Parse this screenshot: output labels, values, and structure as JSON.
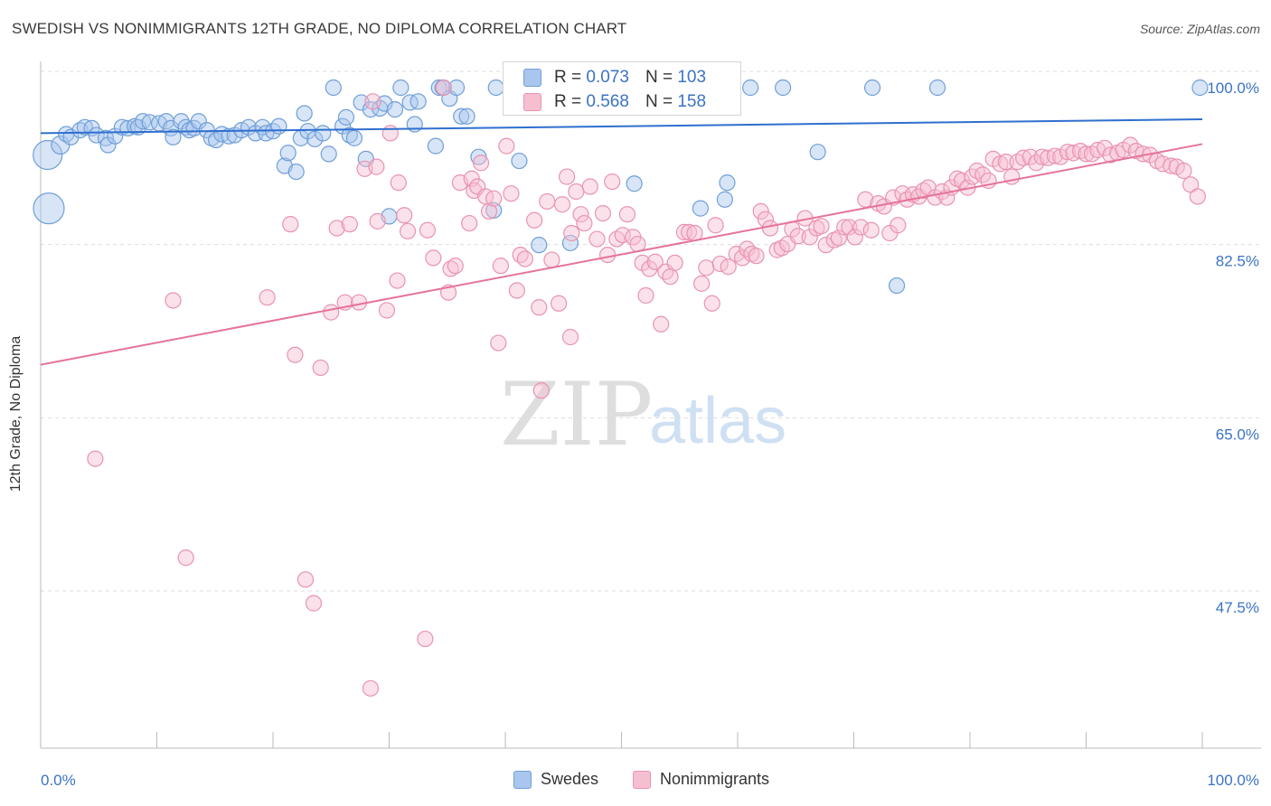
{
  "title": "SWEDISH VS NONIMMIGRANTS 12TH GRADE, NO DIPLOMA CORRELATION CHART",
  "source": "Source: ZipAtlas.com",
  "watermark": {
    "zip": "ZIP",
    "atlas": "atlas"
  },
  "stats_box": {
    "row1": {
      "r_label": "R =",
      "r_value": "0.073",
      "n_label": "N =",
      "n_value": "103"
    },
    "row2": {
      "r_label": "R =",
      "r_value": "0.568",
      "n_label": "N =",
      "n_value": "158"
    }
  },
  "legend": {
    "swedes": "Swedes",
    "nonimmigrants": "Nonimmigrants"
  },
  "colors": {
    "blue_fill": "#a9c6ee",
    "blue_stroke": "#6f9fd8",
    "blue_line": "#2f6fcf",
    "pink_fill": "#f6bfd0",
    "pink_stroke": "#e993b0",
    "pink_line": "#e5739a",
    "tick_label": "#3b73c4",
    "grid": "#dddddd"
  },
  "chart_data": {
    "type": "scatter",
    "title": "SWEDISH VS NONIMMIGRANTS 12TH GRADE, NO DIPLOMA CORRELATION CHART",
    "xlabel": "",
    "ylabel": "12th Grade, No Diploma",
    "xlim": [
      0,
      100
    ],
    "ylim": [
      32,
      101.5
    ],
    "x_tick_labels": [
      "0.0%",
      "100.0%"
    ],
    "y_ticks": [
      100.0,
      82.5,
      65.0,
      47.5
    ],
    "y_tick_labels": [
      "100.0%",
      "82.5%",
      "65.0%",
      "47.5%"
    ],
    "grid": true,
    "legend_position": "bottom",
    "series": [
      {
        "name": "Swedes",
        "color": "#6f9fd8",
        "trend": {
          "r": 0.073,
          "n": 103,
          "y_at_0": 95.4,
          "y_at_100": 96.8
        },
        "points": [
          [
            0.6,
            93.2
          ],
          [
            0.7,
            87.8
          ],
          [
            1.7,
            94.2
          ],
          [
            2.2,
            95.3
          ],
          [
            2.6,
            95.0
          ],
          [
            3.4,
            95.7
          ],
          [
            3.8,
            96.0
          ],
          [
            4.4,
            95.9
          ],
          [
            4.8,
            95.2
          ],
          [
            5.6,
            94.9
          ],
          [
            5.8,
            94.2
          ],
          [
            6.4,
            95.1
          ],
          [
            7.0,
            96.0
          ],
          [
            7.5,
            95.9
          ],
          [
            8.1,
            96.1
          ],
          [
            8.4,
            96.0
          ],
          [
            8.8,
            96.6
          ],
          [
            9.4,
            96.5
          ],
          [
            10.2,
            96.4
          ],
          [
            10.8,
            96.6
          ],
          [
            11.2,
            95.9
          ],
          [
            11.4,
            95.0
          ],
          [
            12.1,
            96.6
          ],
          [
            12.5,
            96.0
          ],
          [
            12.8,
            95.7
          ],
          [
            13.2,
            95.9
          ],
          [
            13.6,
            96.6
          ],
          [
            14.3,
            95.7
          ],
          [
            14.7,
            94.9
          ],
          [
            15.1,
            94.7
          ],
          [
            15.6,
            95.3
          ],
          [
            16.2,
            95.1
          ],
          [
            16.7,
            95.2
          ],
          [
            17.3,
            95.7
          ],
          [
            17.9,
            96.0
          ],
          [
            18.5,
            95.4
          ],
          [
            19.1,
            96.0
          ],
          [
            19.4,
            95.4
          ],
          [
            20.0,
            95.6
          ],
          [
            20.5,
            96.1
          ],
          [
            21.0,
            92.1
          ],
          [
            21.3,
            93.4
          ],
          [
            22.0,
            91.5
          ],
          [
            22.4,
            94.9
          ],
          [
            22.7,
            97.4
          ],
          [
            23.0,
            95.6
          ],
          [
            23.6,
            94.8
          ],
          [
            24.3,
            95.4
          ],
          [
            24.8,
            93.3
          ],
          [
            25.2,
            100.0
          ],
          [
            26.0,
            96.1
          ],
          [
            26.3,
            97.0
          ],
          [
            26.6,
            95.2
          ],
          [
            27.0,
            94.9
          ],
          [
            27.6,
            98.5
          ],
          [
            28.0,
            92.8
          ],
          [
            28.4,
            97.8
          ],
          [
            29.2,
            97.9
          ],
          [
            29.6,
            98.4
          ],
          [
            30.0,
            87.0
          ],
          [
            30.5,
            97.8
          ],
          [
            31.0,
            100.0
          ],
          [
            31.8,
            98.5
          ],
          [
            32.2,
            96.3
          ],
          [
            32.5,
            98.6
          ],
          [
            34.0,
            94.1
          ],
          [
            34.3,
            100.0
          ],
          [
            34.6,
            100.0
          ],
          [
            35.2,
            98.9
          ],
          [
            35.8,
            100.0
          ],
          [
            36.2,
            97.1
          ],
          [
            36.7,
            97.1
          ],
          [
            37.7,
            93.0
          ],
          [
            39.0,
            87.6
          ],
          [
            39.2,
            100.0
          ],
          [
            41.0,
            100.0
          ],
          [
            41.2,
            92.6
          ],
          [
            42.9,
            84.1
          ],
          [
            45.0,
            100.0
          ],
          [
            45.6,
            84.3
          ],
          [
            48.4,
            100.0
          ],
          [
            51.1,
            90.3
          ],
          [
            52.7,
            100.0
          ],
          [
            56.8,
            87.8
          ],
          [
            56.9,
            100.0
          ],
          [
            58.9,
            88.7
          ],
          [
            59.1,
            90.4
          ],
          [
            61.1,
            100.0
          ],
          [
            63.9,
            100.0
          ],
          [
            66.9,
            93.5
          ],
          [
            71.6,
            100.0
          ],
          [
            73.7,
            80.0
          ],
          [
            77.2,
            100.0
          ],
          [
            99.8,
            100.0
          ]
        ],
        "large_points": [
          [
            0.6,
            93.2,
            16
          ],
          [
            0.7,
            87.8,
            17
          ],
          [
            1.7,
            94.2,
            10
          ]
        ]
      },
      {
        "name": "Nonimmigrants",
        "color": "#e993b0",
        "trend": {
          "r": 0.568,
          "n": 158,
          "y_at_0": 72.0,
          "y_at_100": 94.3
        },
        "points": [
          [
            4.7,
            62.5
          ],
          [
            11.4,
            78.5
          ],
          [
            12.5,
            52.5
          ],
          [
            19.5,
            78.8
          ],
          [
            21.5,
            86.2
          ],
          [
            21.9,
            73.0
          ],
          [
            22.8,
            50.3
          ],
          [
            23.5,
            47.9
          ],
          [
            24.1,
            71.7
          ],
          [
            25.0,
            77.3
          ],
          [
            25.5,
            85.8
          ],
          [
            26.2,
            78.3
          ],
          [
            26.6,
            86.2
          ],
          [
            27.4,
            78.3
          ],
          [
            27.9,
            91.8
          ],
          [
            28.4,
            39.3
          ],
          [
            28.6,
            98.6
          ],
          [
            28.9,
            92.0
          ],
          [
            29.0,
            86.5
          ],
          [
            29.8,
            77.5
          ],
          [
            30.1,
            95.4
          ],
          [
            30.7,
            80.5
          ],
          [
            30.8,
            90.4
          ],
          [
            31.3,
            87.1
          ],
          [
            31.6,
            85.5
          ],
          [
            33.1,
            44.3
          ],
          [
            33.3,
            85.6
          ],
          [
            33.8,
            82.8
          ],
          [
            34.7,
            100.0
          ],
          [
            35.1,
            79.3
          ],
          [
            35.3,
            81.7
          ],
          [
            35.7,
            82.0
          ],
          [
            36.1,
            90.4
          ],
          [
            36.9,
            86.3
          ],
          [
            37.1,
            90.8
          ],
          [
            37.3,
            89.6
          ],
          [
            37.6,
            90.0
          ],
          [
            37.9,
            92.4
          ],
          [
            38.3,
            89.0
          ],
          [
            38.6,
            87.5
          ],
          [
            39.0,
            88.8
          ],
          [
            39.4,
            74.2
          ],
          [
            39.6,
            82.0
          ],
          [
            40.1,
            94.1
          ],
          [
            40.5,
            89.3
          ],
          [
            41.0,
            79.5
          ],
          [
            41.3,
            83.1
          ],
          [
            41.7,
            82.7
          ],
          [
            42.5,
            86.6
          ],
          [
            42.9,
            77.8
          ],
          [
            43.1,
            69.4
          ],
          [
            43.6,
            88.5
          ],
          [
            44.0,
            82.6
          ],
          [
            44.6,
            78.2
          ],
          [
            44.9,
            88.2
          ],
          [
            45.3,
            91.0
          ],
          [
            45.6,
            74.8
          ],
          [
            45.7,
            85.3
          ],
          [
            46.1,
            89.5
          ],
          [
            46.5,
            87.2
          ],
          [
            46.8,
            86.3
          ],
          [
            47.3,
            90.0
          ],
          [
            47.9,
            84.7
          ],
          [
            48.4,
            87.3
          ],
          [
            48.8,
            83.1
          ],
          [
            49.2,
            90.5
          ],
          [
            49.6,
            84.7
          ],
          [
            50.1,
            85.1
          ],
          [
            50.5,
            87.2
          ],
          [
            51.0,
            84.9
          ],
          [
            51.4,
            84.2
          ],
          [
            51.8,
            82.3
          ],
          [
            52.1,
            79.0
          ],
          [
            52.4,
            81.7
          ],
          [
            52.9,
            82.4
          ],
          [
            53.4,
            76.1
          ],
          [
            53.8,
            81.4
          ],
          [
            54.2,
            80.9
          ],
          [
            54.6,
            82.3
          ],
          [
            55.4,
            85.4
          ],
          [
            55.8,
            85.4
          ],
          [
            56.3,
            85.3
          ],
          [
            56.9,
            80.2
          ],
          [
            57.3,
            81.8
          ],
          [
            57.8,
            78.2
          ],
          [
            58.1,
            86.1
          ],
          [
            58.5,
            82.2
          ],
          [
            59.2,
            81.9
          ],
          [
            59.9,
            83.2
          ],
          [
            60.4,
            82.8
          ],
          [
            60.8,
            83.7
          ],
          [
            61.2,
            83.2
          ],
          [
            61.6,
            83.0
          ],
          [
            62.0,
            87.5
          ],
          [
            62.4,
            86.7
          ],
          [
            62.8,
            85.8
          ],
          [
            63.4,
            83.6
          ],
          [
            63.8,
            83.8
          ],
          [
            64.3,
            84.2
          ],
          [
            64.7,
            85.7
          ],
          [
            65.2,
            85.0
          ],
          [
            65.8,
            86.8
          ],
          [
            66.2,
            84.9
          ],
          [
            66.8,
            85.8
          ],
          [
            67.2,
            86.0
          ],
          [
            67.6,
            84.1
          ],
          [
            68.3,
            84.6
          ],
          [
            68.7,
            84.8
          ],
          [
            69.2,
            85.9
          ],
          [
            69.6,
            85.9
          ],
          [
            70.1,
            84.9
          ],
          [
            70.6,
            85.9
          ],
          [
            71.0,
            88.7
          ],
          [
            71.5,
            85.6
          ],
          [
            72.1,
            88.3
          ],
          [
            72.6,
            88.0
          ],
          [
            73.1,
            85.3
          ],
          [
            73.4,
            88.9
          ],
          [
            73.8,
            86.1
          ],
          [
            74.2,
            89.3
          ],
          [
            74.6,
            88.7
          ],
          [
            75.1,
            89.2
          ],
          [
            75.6,
            89.0
          ],
          [
            76.0,
            89.6
          ],
          [
            76.4,
            89.9
          ],
          [
            77.0,
            88.9
          ],
          [
            77.6,
            89.5
          ],
          [
            78.0,
            88.9
          ],
          [
            78.4,
            89.9
          ],
          [
            78.9,
            90.8
          ],
          [
            79.3,
            90.6
          ],
          [
            79.8,
            89.9
          ],
          [
            80.2,
            91.0
          ],
          [
            80.6,
            91.6
          ],
          [
            81.1,
            91.2
          ],
          [
            81.6,
            90.6
          ],
          [
            82.0,
            92.8
          ],
          [
            82.6,
            92.3
          ],
          [
            83.1,
            92.5
          ],
          [
            83.6,
            91.0
          ],
          [
            84.1,
            92.5
          ],
          [
            84.6,
            92.9
          ],
          [
            85.2,
            93.0
          ],
          [
            85.7,
            92.4
          ],
          [
            86.2,
            93.0
          ],
          [
            86.7,
            92.9
          ],
          [
            87.3,
            93.1
          ],
          [
            87.8,
            93.0
          ],
          [
            88.4,
            93.5
          ],
          [
            88.9,
            93.4
          ],
          [
            89.5,
            93.6
          ],
          [
            90.0,
            93.3
          ],
          [
            90.5,
            93.3
          ],
          [
            91.0,
            93.7
          ],
          [
            91.6,
            93.9
          ],
          [
            92.1,
            93.2
          ],
          [
            92.7,
            93.4
          ],
          [
            93.2,
            93.7
          ],
          [
            93.8,
            94.2
          ],
          [
            94.3,
            93.6
          ],
          [
            94.9,
            93.3
          ],
          [
            95.5,
            93.2
          ],
          [
            96.1,
            92.6
          ],
          [
            96.6,
            92.3
          ],
          [
            97.3,
            92.1
          ],
          [
            97.8,
            92.0
          ],
          [
            98.4,
            91.6
          ],
          [
            99.0,
            90.2
          ],
          [
            99.6,
            89.0
          ]
        ]
      }
    ]
  }
}
